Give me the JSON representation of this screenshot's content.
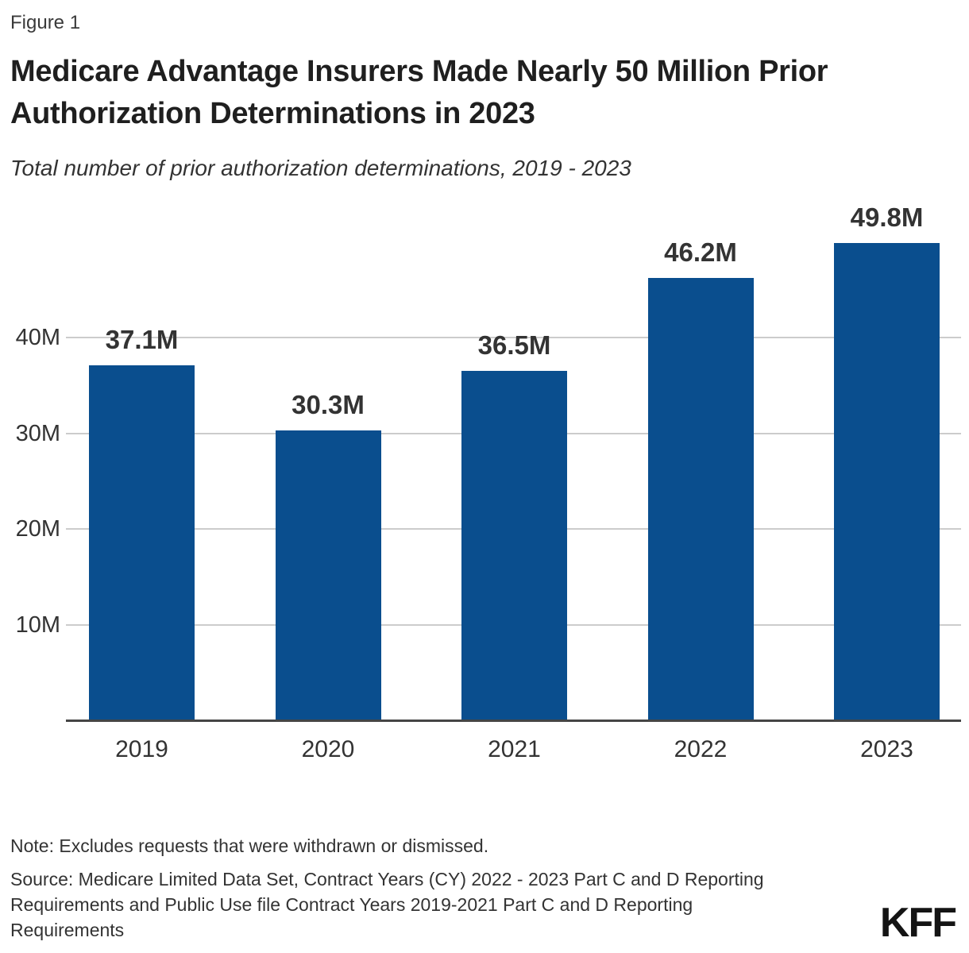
{
  "figure_label": "Figure 1",
  "title": {
    "full": "Medicare Advantage Insurers Made Nearly 50 Million Prior Authorization Determinations in 2023",
    "lines": [
      "Medicare Advantage Insurers Made Nearly 50 Million Prior",
      "Authorization Determinations in 2023"
    ]
  },
  "subtitle": "Total number of prior authorization determinations, 2019 - 2023",
  "chart_data": {
    "type": "bar",
    "title": "Medicare Advantage Insurers Made Nearly 50 Million Prior Authorization Determinations in 2023",
    "subtitle": "Total number of prior authorization determinations, 2019 - 2023",
    "categories": [
      "2019",
      "2020",
      "2021",
      "2022",
      "2023"
    ],
    "values": [
      37.1,
      30.3,
      36.5,
      46.2,
      49.8
    ],
    "value_labels": [
      "37.1M",
      "30.3M",
      "36.5M",
      "46.2M",
      "49.8M"
    ],
    "unit": "millions of determinations",
    "xlabel": "",
    "ylabel": "",
    "ylim": [
      0,
      50
    ],
    "yticks": [
      10,
      20,
      30,
      40
    ],
    "ytick_labels": [
      "10M",
      "20M",
      "30M",
      "40M"
    ],
    "grid": "horizontal",
    "legend": "none",
    "bar_color": "#0a4e8e",
    "gridline_color": "#cccccc",
    "axis_color": "#454545",
    "label_color": "#333333"
  },
  "footer": {
    "note": "Note: Excludes requests that were withdrawn or dismissed.",
    "source_lines": [
      "Source: Medicare Limited Data Set, Contract Years (CY) 2022 - 2023 Part C and D Reporting",
      "Requirements and Public Use file Contract Years 2019-2021 Part C and D Reporting",
      "Requirements"
    ],
    "logo": "KFF"
  }
}
